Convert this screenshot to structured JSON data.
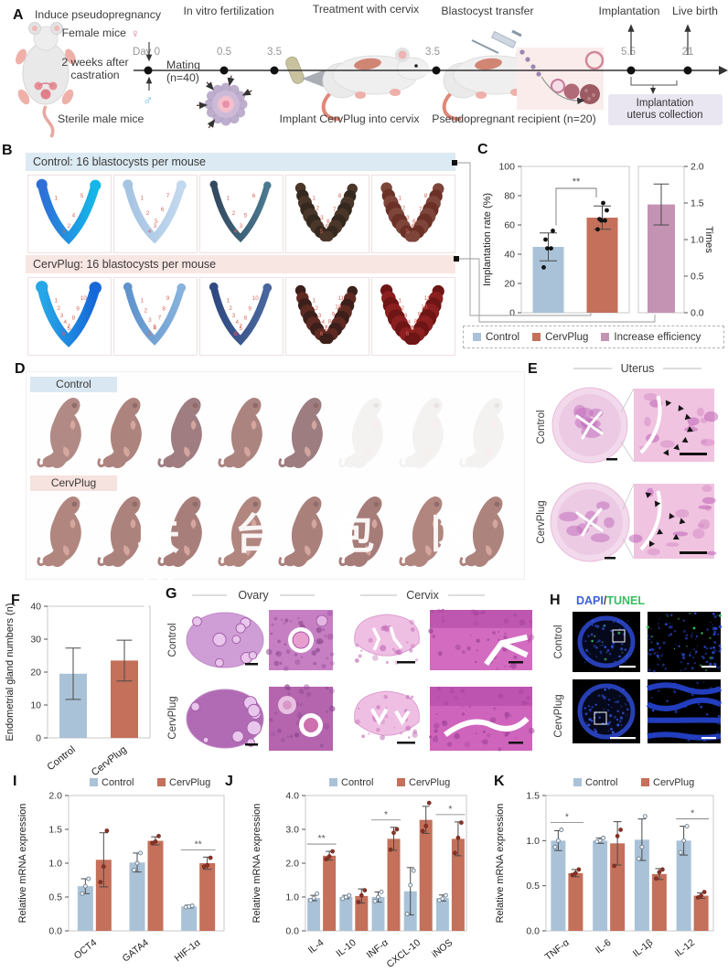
{
  "panelA": {
    "label": "A",
    "step_titles": [
      "Induce pseudopregnancy",
      "In vitro fertilization",
      "Treatment with cervix",
      "Blastocyst transfer",
      "Implantation",
      "Live birth"
    ],
    "timeline_ticks": [
      "Day 0",
      "0.5",
      "3.5",
      "3.5",
      "5.5",
      "21"
    ],
    "female_label": "Female mice",
    "female_symbol": "♀",
    "male_symbol": "♂",
    "castration_line1": "2 weeks after",
    "castration_line2": "castration",
    "mating_line1": "Mating",
    "mating_line2": "(n=40)",
    "sterile_label": "Sterile male mice",
    "implant_label": "Implant CervPlug into cervix",
    "recipient_label": "Pseudopregnant recipient (n=20)",
    "collection_line1": "Implantation",
    "collection_line2": "uterus collection"
  },
  "panelB": {
    "label": "B",
    "groups": [
      {
        "title": "Control: 16 blastocysts per mouse",
        "bg": "#dceaf3",
        "images": [
          {
            "c1": "#2e6fd8",
            "c2": "#15b7e8",
            "w": 10,
            "bead": false,
            "sites": 5
          },
          {
            "c1": "#a6c4e2",
            "c2": "#c2d8ee",
            "w": 9,
            "bead": false,
            "sites": 7
          },
          {
            "c1": "#33495e",
            "c2": "#4a7990",
            "w": 7,
            "bead": false,
            "sites": 6
          },
          {
            "c1": "#35291f",
            "c2": "#4a372a",
            "w": 12,
            "bead": true,
            "sites": 8
          },
          {
            "c1": "#6b3026",
            "c2": "#7e453a",
            "w": 13,
            "bead": true,
            "sites": 8
          }
        ]
      },
      {
        "title": "CervPlug: 16 blastocysts per mouse",
        "bg": "#f8e6e2",
        "images": [
          {
            "c1": "#27a7e8",
            "c2": "#1668d8",
            "w": 11,
            "bead": false,
            "sites": 10
          },
          {
            "c1": "#5f93cc",
            "c2": "#86b2dd",
            "w": 8,
            "bead": false,
            "sites": 9
          },
          {
            "c1": "#2f4a80",
            "c2": "#49679e",
            "w": 8,
            "bead": false,
            "sites": 10
          },
          {
            "c1": "#5e2a22",
            "c2": "#3c1f1a",
            "w": 12,
            "bead": true,
            "sites": 11
          },
          {
            "c1": "#8c1f1f",
            "c2": "#6e1515",
            "w": 14,
            "bead": true,
            "sites": 11
          }
        ]
      }
    ],
    "site_number_color": "#d4695c"
  },
  "panelC": {
    "label": "C",
    "sig_label": "**",
    "legend": {
      "items": [
        {
          "label": "Control",
          "color": "#a9c2d8"
        },
        {
          "label": "CervPlug",
          "color": "#c4705a"
        },
        {
          "label": "Increase efficiency",
          "color": "#c493b3"
        }
      ]
    }
  },
  "panelD": {
    "label": "D",
    "rows": [
      {
        "chip": "Control",
        "chip_bg": "#d9e7f2",
        "pups": [
          {
            "tone": "#b28a85"
          },
          {
            "tone": "#ad837e"
          },
          {
            "tone": "#9f7d81"
          },
          {
            "tone": "#ab837f"
          },
          {
            "tone": "#9d7d80"
          },
          {
            "tone": "#cabbb8",
            "faded": true
          },
          {
            "tone": "#cabbb8",
            "faded": true
          },
          {
            "tone": "#cabbb8",
            "faded": true
          }
        ]
      },
      {
        "chip": "CervPlug",
        "chip_bg": "#f6e2de",
        "pups": [
          {
            "tone": "#b1867f"
          },
          {
            "tone": "#ac827c"
          },
          {
            "tone": "#a87e7a"
          },
          {
            "tone": "#b0867f"
          },
          {
            "tone": "#aa807b"
          },
          {
            "tone": "#a67c79"
          },
          {
            "tone": "#b1867f"
          },
          {
            "tone": "#ad837d"
          }
        ]
      }
    ],
    "watermark": "联 台 包 区 样"
  },
  "panelE": {
    "label": "E",
    "title": "Uterus",
    "rows": [
      "Control",
      "CervPlug"
    ]
  },
  "panelF": {
    "label": "F"
  },
  "panelG": {
    "label": "G",
    "col_titles": [
      "Ovary",
      "Cervix"
    ],
    "rows": [
      "Control",
      "CervPlug"
    ]
  },
  "panelH": {
    "label": "H",
    "title_dapi": "DAPI",
    "title_sep": "/",
    "title_tunel": "TUNEL",
    "dapi_color": "#3a5fe0",
    "tunel_color": "#35c060",
    "rows": [
      "Control",
      "CervPlug"
    ]
  },
  "panelI": {
    "label": "I"
  },
  "panelJ": {
    "label": "J"
  },
  "panelK": {
    "label": "K"
  },
  "legend_ijk": [
    {
      "label": "Control",
      "color": "#a9c2d8"
    },
    {
      "label": "CervPlug",
      "color": "#c4705a"
    }
  ],
  "chart_data": [
    {
      "id": "C1",
      "type": "bar",
      "ylabel": "Implantation rate (%)",
      "ylim": [
        0,
        100
      ],
      "yticks": [
        "0",
        "20",
        "40",
        "60",
        "80",
        "100"
      ],
      "categories": [
        "Control",
        "CervPlug"
      ],
      "values": [
        45,
        65
      ],
      "errors": [
        9.5,
        8
      ],
      "points": [
        [
          31,
          44,
          44,
          50,
          56
        ],
        [
          57,
          63,
          63,
          64,
          70,
          75
        ]
      ],
      "colors": [
        "#a9c2d8",
        "#c4705a"
      ],
      "sig": {
        "from": 0,
        "to": 1,
        "label": "**"
      },
      "pointStyle": "black",
      "legend_pos": "bottom"
    },
    {
      "id": "C2",
      "type": "bar",
      "ylabel": "Times",
      "ylim": [
        0,
        2
      ],
      "yticks": [
        "0.0",
        "0.5",
        "1.0",
        "1.5",
        "2.0"
      ],
      "categories": [
        "Increase efficiency"
      ],
      "values": [
        1.48
      ],
      "errors": [
        0.28
      ],
      "colors": [
        "#c493b3"
      ]
    },
    {
      "id": "F",
      "type": "bar",
      "ylabel": "Endometrial gland numbers (n)",
      "ylim": [
        0,
        40
      ],
      "yticks": [
        "0",
        "10",
        "20",
        "30",
        "40"
      ],
      "categories": [
        "Control",
        "CervPlug"
      ],
      "values": [
        19.5,
        23.5
      ],
      "errors": [
        7.8,
        6.2
      ],
      "colors": [
        "#a9c2d8",
        "#c4705a"
      ]
    },
    {
      "id": "I",
      "type": "grouped-bar",
      "ylabel": "Relative mRNA expression",
      "ylim": [
        0,
        2
      ],
      "yticks": [
        "0.0",
        "0.5",
        "1.0",
        "1.5",
        "2.0"
      ],
      "categories": [
        "OCT4",
        "GATA4",
        "HIF-1α"
      ],
      "series": [
        {
          "name": "Control",
          "color": "#a9c2d8",
          "values": [
            0.66,
            1.01,
            0.36
          ],
          "errors": [
            0.11,
            0.14,
            0.02
          ],
          "points": [
            [
              0.55,
              0.66,
              0.77
            ],
            [
              0.9,
              1.0,
              1.15
            ],
            [
              0.35,
              0.36,
              0.37
            ]
          ]
        },
        {
          "name": "CervPlug",
          "color": "#c4705a",
          "values": [
            1.05,
            1.33,
            1.0
          ],
          "errors": [
            0.4,
            0.06,
            0.09
          ],
          "points": [
            [
              0.72,
              0.95,
              1.48
            ],
            [
              1.3,
              1.32,
              1.4
            ],
            [
              0.95,
              0.97,
              1.08
            ]
          ]
        }
      ],
      "sigs": [
        {
          "cat": 2,
          "label": "**"
        }
      ]
    },
    {
      "id": "J",
      "type": "grouped-bar",
      "ylabel": "Relative mRNA expression",
      "ylim": [
        0,
        4
      ],
      "yticks": [
        "0.0",
        "1.0",
        "2.0",
        "3.0",
        "4.0"
      ],
      "categories": [
        "IL-4",
        "IL-10",
        "INF-α",
        "CXCL-10",
        "iNOS"
      ],
      "series": [
        {
          "name": "Control",
          "color": "#a9c2d8",
          "values": [
            0.97,
            1.0,
            1.0,
            1.17,
            0.97
          ],
          "errors": [
            0.08,
            0.05,
            0.15,
            0.7,
            0.09
          ],
          "points": [
            [
              0.9,
              0.97,
              1.1
            ],
            [
              0.95,
              1.0,
              1.05
            ],
            [
              0.88,
              1.0,
              1.15
            ],
            [
              0.5,
              1.35,
              1.78
            ],
            [
              0.9,
              0.95,
              1.05
            ]
          ]
        },
        {
          "name": "CervPlug",
          "color": "#c4705a",
          "values": [
            2.22,
            1.03,
            2.72,
            3.28,
            2.72
          ],
          "errors": [
            0.13,
            0.21,
            0.34,
            0.4,
            0.5
          ],
          "points": [
            [
              2.12,
              2.2,
              2.35
            ],
            [
              0.85,
              1.05,
              1.2
            ],
            [
              2.4,
              2.9,
              3.0
            ],
            [
              2.95,
              3.1,
              3.78
            ],
            [
              2.3,
              2.75,
              3.2
            ]
          ]
        }
      ],
      "sigs": [
        {
          "cat": 0,
          "label": "**"
        },
        {
          "cat": 2,
          "label": "*"
        },
        {
          "cat": 4,
          "label": "*"
        }
      ]
    },
    {
      "id": "K",
      "type": "grouped-bar",
      "ylabel": "Relative mRNA expression",
      "ylim": [
        0,
        1.5
      ],
      "yticks": [
        "0.0",
        "0.5",
        "1.0",
        "1.5"
      ],
      "categories": [
        "TNF-α",
        "IL-6",
        "IL-1β",
        "IL-12"
      ],
      "series": [
        {
          "name": "Control",
          "color": "#a9c2d8",
          "values": [
            1.0,
            1.0,
            1.01,
            1.0
          ],
          "errors": [
            0.11,
            0.03,
            0.23,
            0.16
          ],
          "points": [
            [
              0.93,
              1.0,
              1.12
            ],
            [
              0.99,
              1.0,
              1.03
            ],
            [
              0.8,
              0.93,
              1.27
            ],
            [
              0.87,
              1.0,
              1.16
            ]
          ]
        },
        {
          "name": "CervPlug",
          "color": "#c4705a",
          "values": [
            0.64,
            0.97,
            0.63,
            0.39
          ],
          "errors": [
            0.04,
            0.24,
            0.06,
            0.03
          ],
          "points": [
            [
              0.62,
              0.64,
              0.68
            ],
            [
              0.72,
              1.05,
              1.12
            ],
            [
              0.58,
              0.65,
              0.68
            ],
            [
              0.37,
              0.39,
              0.43
            ]
          ]
        }
      ],
      "sigs": [
        {
          "cat": 0,
          "label": "*"
        },
        {
          "cat": 3,
          "label": "*"
        }
      ]
    }
  ]
}
